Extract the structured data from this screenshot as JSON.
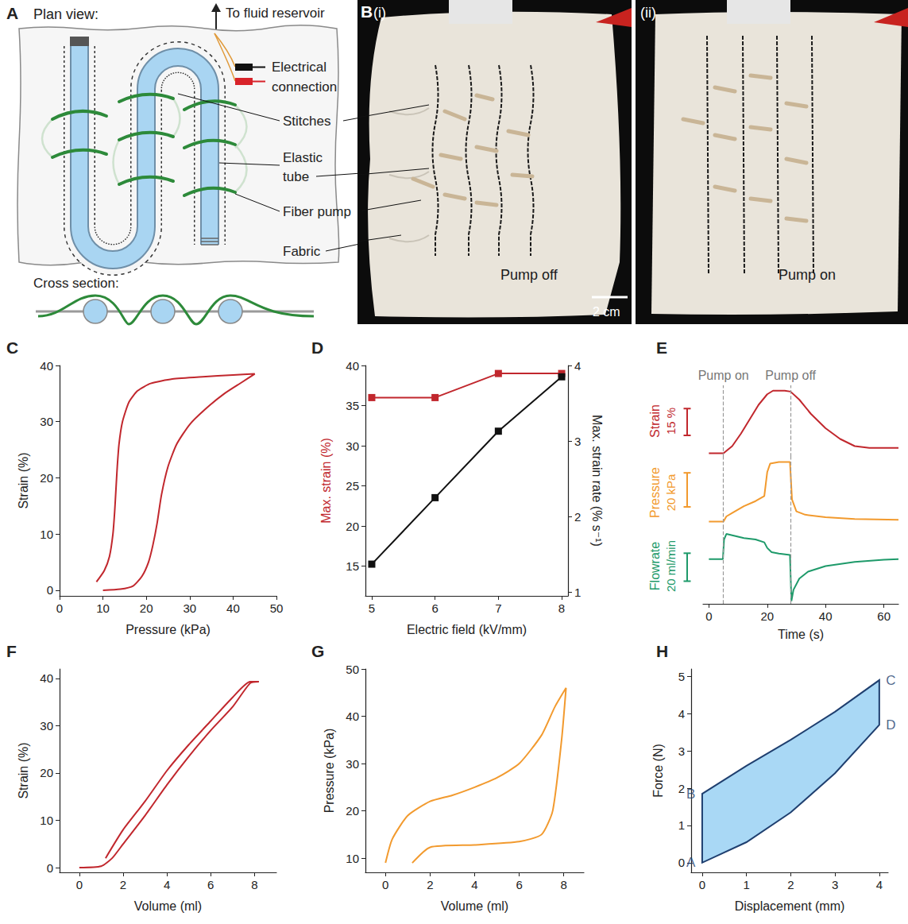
{
  "panel_a": {
    "letter": "A",
    "heading": "Plan view:",
    "reservoir": "To fluid reservoir",
    "electrical": "Electrical connection",
    "stitches": "Stitches",
    "tube": "Elastic tube",
    "fiber_pump": "Fiber pump",
    "fabric": "Fabric",
    "cross_section": "Cross section:"
  },
  "panel_b": {
    "letter": "B",
    "photos": [
      {
        "tag": "(i)",
        "state": "Pump off"
      },
      {
        "tag": "(ii)",
        "state": "Pump on"
      }
    ],
    "scale_bar": "2 cm"
  },
  "chart_data": [
    {
      "panel": "C",
      "type": "line",
      "x_label": "Pressure (kPa)",
      "y_label": "Strain (%)",
      "x": [
        10,
        14,
        17,
        19,
        20.5,
        21.5,
        22.5,
        23.5,
        25,
        27,
        30,
        34,
        38,
        42,
        45,
        40,
        33,
        26,
        21,
        18,
        16,
        14.5,
        13.7,
        13.3,
        13,
        12.7,
        12.3,
        11.5,
        10.3,
        8.5
      ],
      "values": [
        0,
        0.2,
        0.8,
        2.5,
        5,
        8,
        12,
        17,
        22,
        26,
        29.5,
        32.5,
        35,
        37,
        38.5,
        38.3,
        38,
        37.6,
        36.8,
        35.5,
        33.5,
        30,
        26,
        22,
        18,
        14,
        10,
        6,
        3.5,
        1.5
      ],
      "color": "#c1272d",
      "xlim": [
        0,
        50
      ],
      "xticks": [
        0,
        10,
        20,
        30,
        40,
        50
      ],
      "ylim": [
        -1,
        40
      ],
      "yticks": [
        0,
        10,
        20,
        30,
        40
      ],
      "grid": false
    },
    {
      "panel": "D",
      "type": "line",
      "x_label": "Electric field (kV/mm)",
      "y_label": "Max. strain (%)",
      "y2_label": "Max. strain rate (% s⁻¹)",
      "x": [
        5,
        6,
        7,
        8
      ],
      "series": [
        {
          "color": "#c1272d",
          "marker": "square",
          "values": [
            36,
            36,
            39,
            39
          ]
        },
        {
          "color": "#111111",
          "marker": "square",
          "axis": "y2",
          "values": [
            1.37,
            2.25,
            3.13,
            3.85
          ]
        }
      ],
      "xlim": [
        4.9,
        8.1
      ],
      "xticks": [
        5,
        6,
        7,
        8
      ],
      "ylim": [
        11.3,
        40
      ],
      "yticks": [
        15,
        20,
        25,
        30,
        35,
        40
      ],
      "y2lim": [
        0.95,
        4
      ],
      "y2ticks": [
        1,
        2,
        3,
        4
      ],
      "grid": false
    },
    {
      "panel": "E",
      "type": "line",
      "x_label": "Time (s)",
      "xlim": [
        -2,
        65
      ],
      "xticks": [
        0,
        20,
        40,
        60
      ],
      "tick_labels": "x",
      "events": [
        {
          "x": 5,
          "label": "Pump on"
        },
        {
          "x": 28,
          "label": "Pump off"
        }
      ],
      "series": [
        {
          "name": "Strain",
          "color": "#c1272d",
          "scale_bar": 15,
          "scale_label": "15 %",
          "ylim": [
            -2,
            38
          ],
          "x": [
            0,
            5,
            8,
            11,
            14,
            17,
            20,
            22,
            26,
            28,
            31,
            35,
            40,
            45,
            50,
            55,
            65
          ],
          "values": [
            0,
            0,
            4,
            11,
            19,
            27,
            33,
            35,
            35,
            34.5,
            30,
            22,
            14,
            8,
            4,
            3,
            3
          ]
        },
        {
          "name": "Pressure",
          "color": "#f29a2e",
          "scale_bar": 20,
          "scale_label": "20 kPa",
          "ylim": [
            5,
            47
          ],
          "x": [
            0,
            5,
            6,
            8,
            12,
            16,
            19,
            20,
            21,
            24,
            27.8,
            28.5,
            30,
            33,
            40,
            50,
            65
          ],
          "values": [
            9,
            9,
            12,
            14,
            18,
            21,
            24,
            38,
            43,
            44,
            44,
            22,
            15,
            13,
            11.5,
            10.5,
            10
          ]
        },
        {
          "name": "Flowrate",
          "color": "#1e9a6a",
          "scale_bar": 20,
          "scale_label": "20 ml/min",
          "ylim": [
            -32,
            22
          ],
          "x": [
            0,
            4.8,
            5.2,
            6,
            8,
            12,
            16,
            19,
            20,
            21.5,
            24,
            27.8,
            28.3,
            29,
            31,
            34,
            40,
            50,
            60,
            65
          ],
          "values": [
            0,
            0,
            14,
            18,
            17,
            15,
            14,
            12,
            8,
            5,
            4,
            3,
            -30,
            -22,
            -14,
            -9,
            -5,
            -2,
            -0.5,
            0
          ]
        }
      ]
    },
    {
      "panel": "F",
      "type": "line",
      "x_label": "Volume (ml)",
      "y_label": "Strain (%)",
      "x": [
        0,
        1,
        1.5,
        2,
        3,
        4,
        5,
        6,
        7,
        7.8,
        8.2,
        7.8,
        7,
        6,
        5,
        4,
        3,
        2,
        1.2
      ],
      "values": [
        0,
        0.3,
        2,
        5,
        11,
        17.5,
        23.5,
        29,
        34,
        39,
        39.3,
        39.3,
        36,
        31,
        26,
        20.5,
        14,
        8,
        2
      ],
      "color": "#c1272d",
      "xlim": [
        -0.9,
        9
      ],
      "xticks": [
        0,
        2,
        4,
        6,
        8
      ],
      "ylim": [
        -1,
        42
      ],
      "yticks": [
        0,
        10,
        20,
        30,
        40
      ],
      "grid": false
    },
    {
      "panel": "G",
      "type": "line",
      "x_label": "Volume (ml)",
      "y_label": "Pressure (kPa)",
      "x": [
        0,
        0.3,
        1,
        2,
        3,
        4,
        5,
        6,
        7,
        7.6,
        8.1,
        7.9,
        7.5,
        7,
        6,
        4,
        2,
        1.2
      ],
      "values": [
        9,
        14,
        19,
        22,
        23.3,
        25,
        27,
        30,
        36,
        42,
        46,
        35,
        20,
        15,
        13.5,
        12.8,
        12.3,
        9
      ],
      "color": "#f29a2e",
      "xlim": [
        -0.9,
        8.9
      ],
      "xticks": [
        0,
        2,
        4,
        6,
        8
      ],
      "ylim": [
        7,
        50
      ],
      "yticks": [
        10,
        20,
        30,
        40,
        50
      ],
      "grid": false
    },
    {
      "panel": "H",
      "type": "area",
      "x_label": "Displacement (mm)",
      "y_label": "Force (N)",
      "x": [
        0,
        0,
        1,
        2,
        3,
        4,
        4,
        3,
        2,
        1
      ],
      "values": [
        0,
        1.85,
        2.6,
        3.3,
        4.05,
        4.9,
        3.7,
        2.4,
        1.35,
        0.55
      ],
      "corners": [
        {
          "label": "A",
          "x": 0,
          "y": 0
        },
        {
          "label": "B",
          "x": 0,
          "y": 1.85
        },
        {
          "label": "C",
          "x": 4,
          "y": 4.9
        },
        {
          "label": "D",
          "x": 4,
          "y": 3.7
        }
      ],
      "color": "#1f3f6f",
      "xlim": [
        -0.25,
        4.2
      ],
      "xticks": [
        0,
        1,
        2,
        3,
        4
      ],
      "ylim": [
        -0.26,
        5.2
      ],
      "yticks": [
        0,
        1,
        2,
        3,
        4,
        5
      ],
      "grid": false
    }
  ]
}
